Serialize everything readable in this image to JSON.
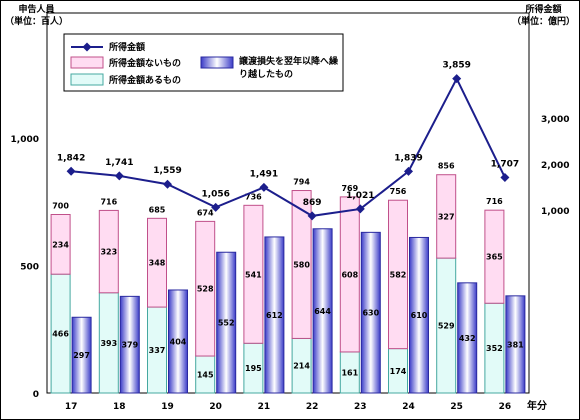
{
  "left_axis": {
    "title": "申告人員",
    "unit": "（単位：百人）"
  },
  "right_axis": {
    "title": "所得金額",
    "unit": "（単位：億円）"
  },
  "x_axis_label": "年分",
  "legend": {
    "line": "所得金額",
    "bar_pink": "所得金額ないもの",
    "bar_cyan": "所得金額あるもの",
    "bar_blue": "譲渡損失を翌年以降へ繰り越したもの"
  },
  "colors": {
    "pink_fill": "#ffdcf2",
    "pink_stroke": "#c0508a",
    "cyan_fill": "#e2fbf8",
    "cyan_stroke": "#45a8a0",
    "blue_fill": "#6f70ee",
    "blue_stroke": "#2a2aa0",
    "line": "#1c1e8c"
  },
  "chart_data": {
    "type": "bar",
    "categories": [
      "17",
      "18",
      "19",
      "20",
      "21",
      "22",
      "23",
      "24",
      "25",
      "26"
    ],
    "left_ylim": [
      0,
      1000
    ],
    "left_yticks": [
      "0",
      "500",
      "1,000"
    ],
    "right_yticks": [
      "1,000",
      "2,000",
      "3,000"
    ],
    "stacked": [
      {
        "name": "所得金額あるもの",
        "values": [
          466,
          393,
          337,
          145,
          195,
          214,
          161,
          174,
          529,
          352
        ]
      },
      {
        "name": "所得金額ないもの",
        "values": [
          234,
          323,
          348,
          528,
          541,
          580,
          608,
          582,
          327,
          365
        ]
      }
    ],
    "stack_totals": [
      "700",
      "716",
      "685",
      "674",
      "736",
      "794",
      "769",
      "756",
      "856",
      "716"
    ],
    "carryover": {
      "name": "譲渡損失を翌年以降へ繰り越したもの",
      "values": [
        297,
        379,
        404,
        552,
        612,
        644,
        630,
        610,
        432,
        381
      ]
    },
    "line": {
      "name": "所得金額",
      "values": [
        1842,
        1741,
        1559,
        1056,
        1491,
        869,
        1021,
        1839,
        3859,
        1707
      ],
      "labels": [
        "1,842",
        "1,741",
        "1,559",
        "1,056",
        "1,491",
        "869",
        "1,021",
        "1,839",
        "3,859",
        "1,707"
      ]
    }
  }
}
